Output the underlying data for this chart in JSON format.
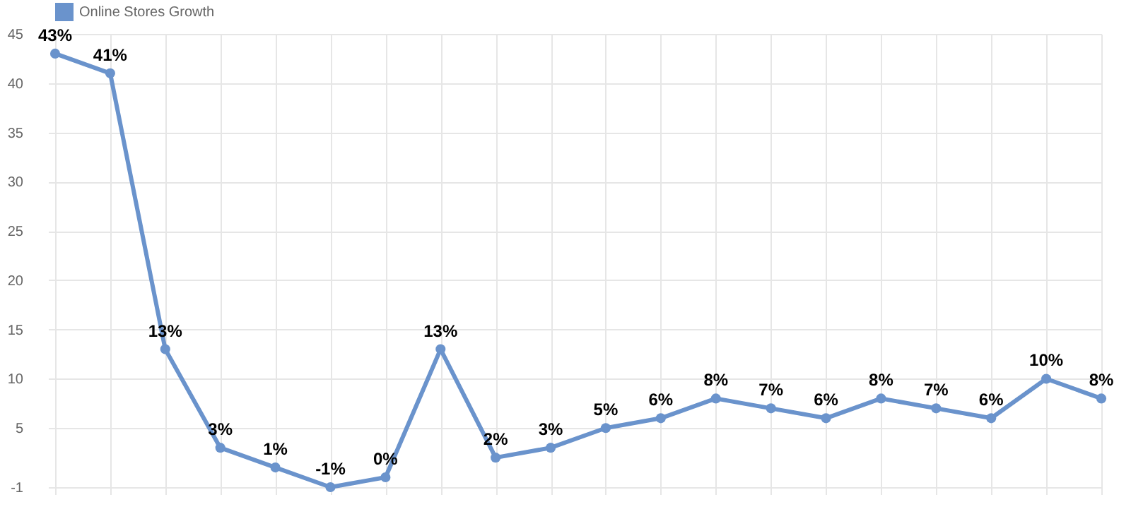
{
  "chart_data": {
    "type": "line",
    "categories": [
      null,
      null,
      null,
      null,
      null,
      null,
      null,
      null,
      null,
      null,
      null,
      null,
      null,
      null,
      null,
      null,
      null,
      null,
      null,
      null
    ],
    "series": [
      {
        "name": "Online Stores Growth",
        "color": "#6a93cc",
        "values": [
          43,
          41,
          13,
          3,
          1,
          -1,
          0,
          13,
          2,
          3,
          5,
          6,
          8,
          7,
          6,
          8,
          7,
          6,
          10,
          8
        ],
        "value_labels": [
          "43%",
          "41%",
          "13%",
          "3%",
          "1%",
          "-1%",
          "0%",
          "13%",
          "2%",
          "3%",
          "5%",
          "6%",
          "8%",
          "7%",
          "6%",
          "8%",
          "7%",
          "6%",
          "10%",
          "8%"
        ]
      }
    ],
    "ylim": [
      -1,
      45
    ],
    "yticks": [
      45,
      40,
      35,
      30,
      25,
      20,
      15,
      10,
      5,
      -1
    ],
    "grid": true,
    "legend": "top",
    "marker": "circle",
    "line_style": "solid"
  }
}
